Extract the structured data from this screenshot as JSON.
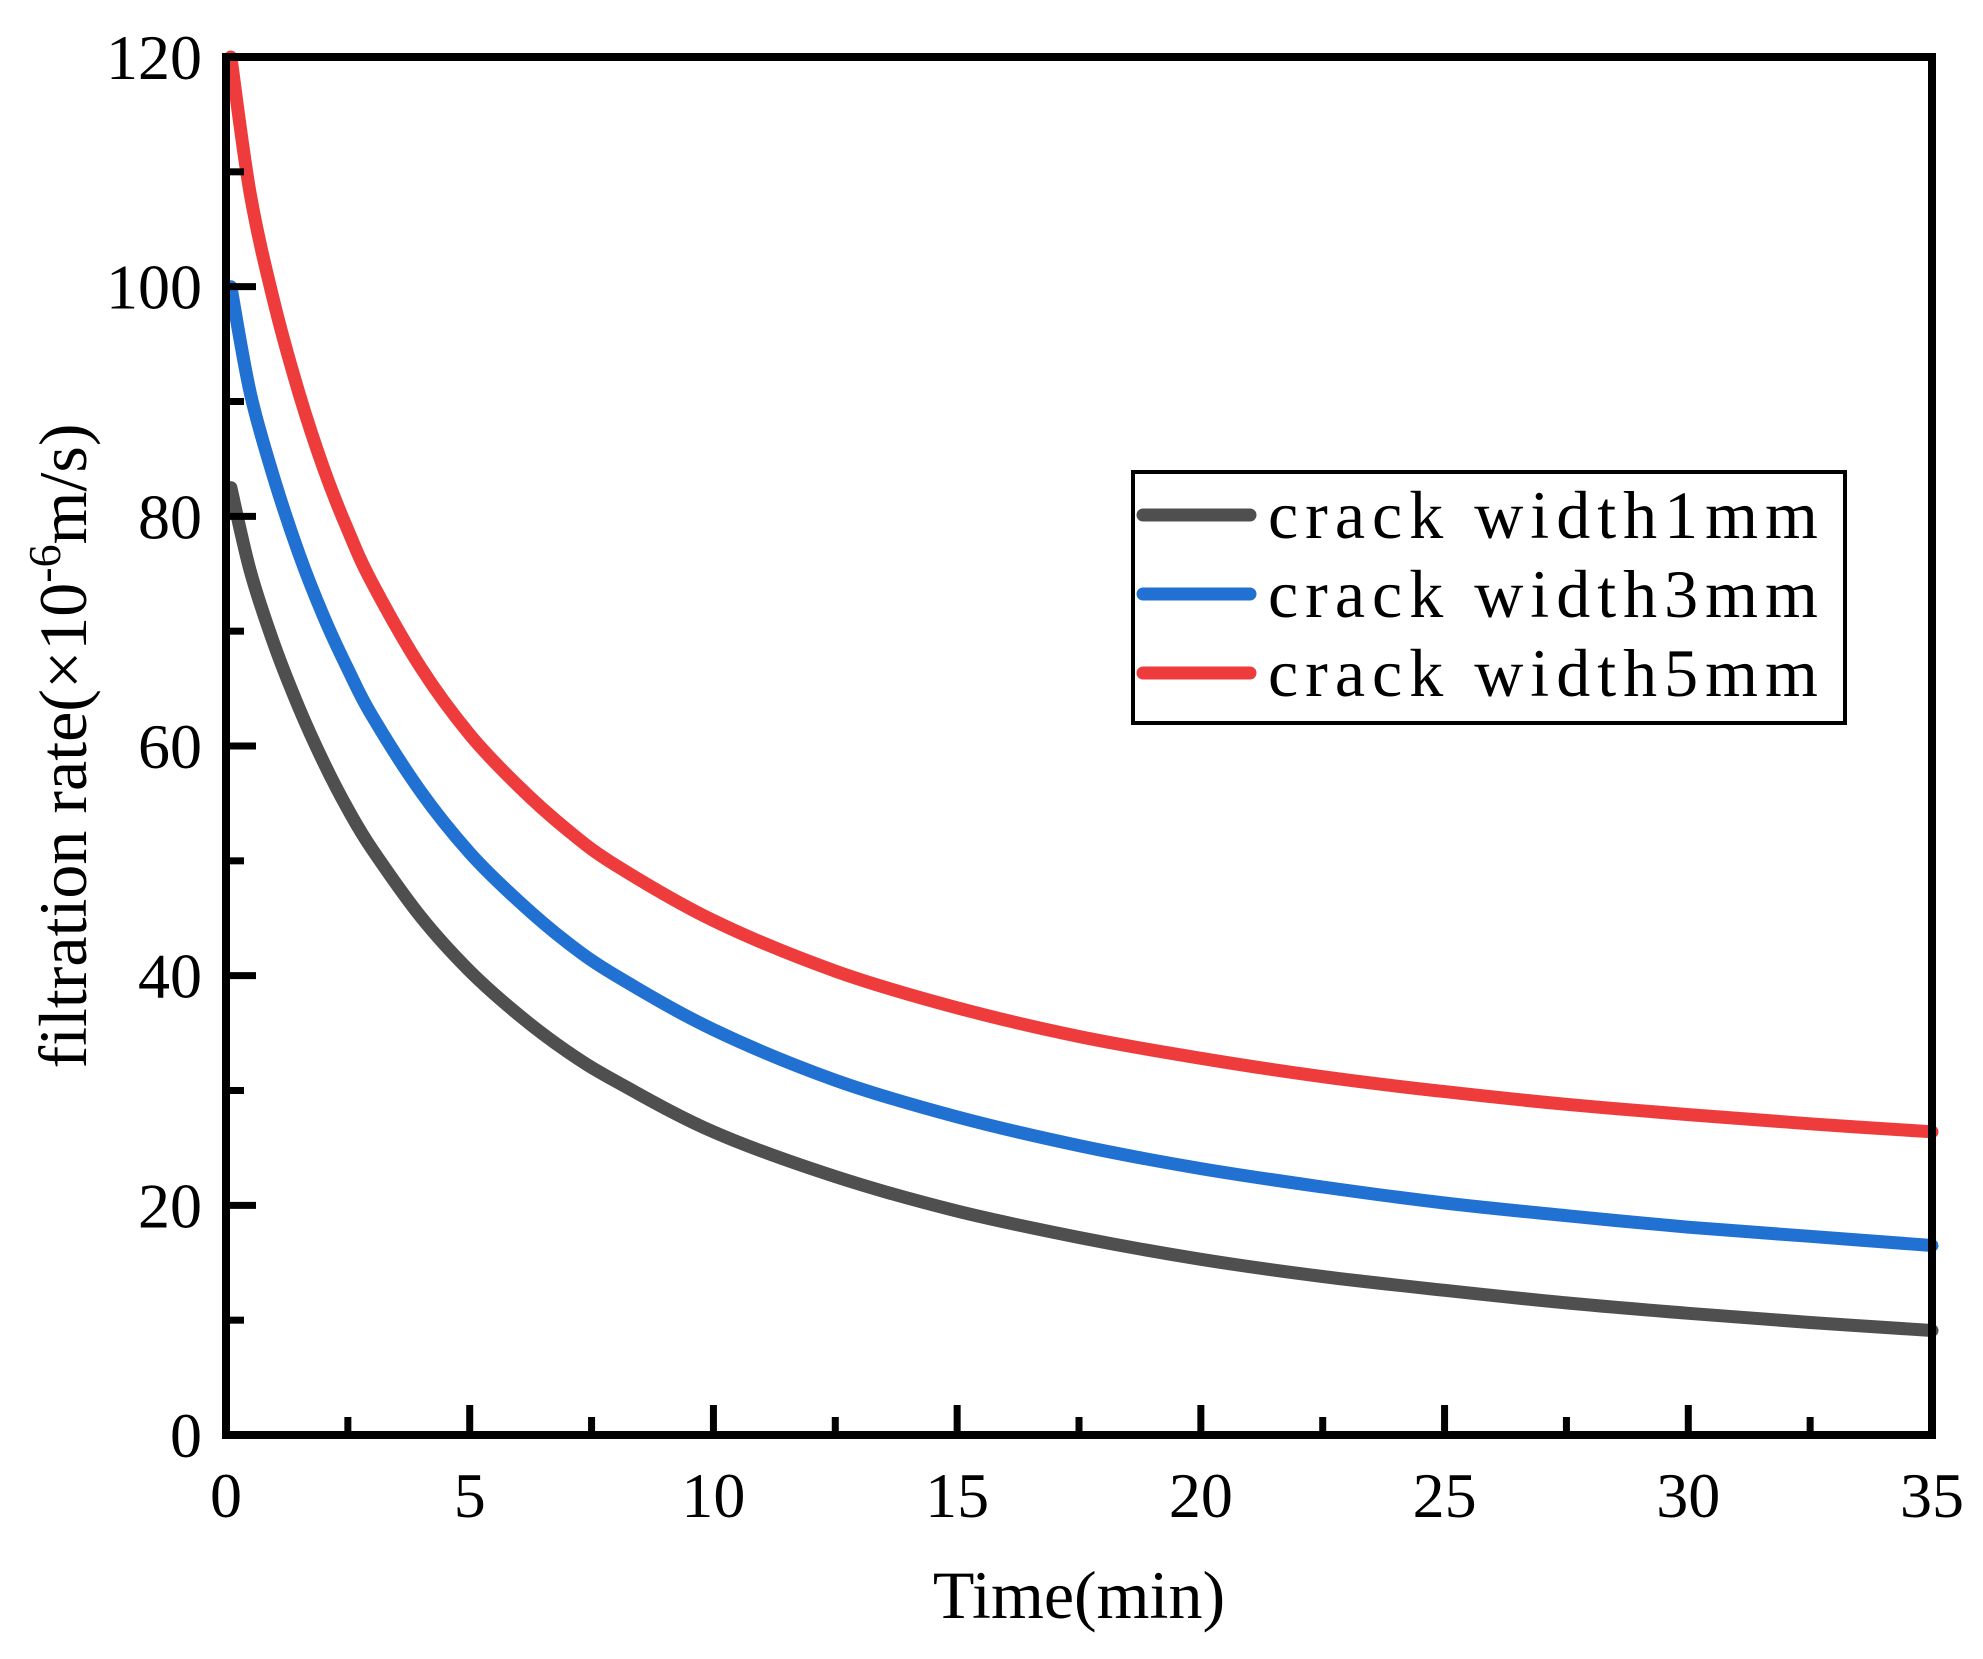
{
  "figure": {
    "background": "#ffffff",
    "frame_color": "#000000"
  },
  "chart_data": {
    "type": "line",
    "title": "",
    "xlabel": "Time(min)",
    "ylabel": "filtration rate(×10⁻⁶m/s)",
    "ylabel_parts": {
      "main": "filtration rate(×10",
      "sup": "-6",
      "rest": "m/s)"
    },
    "xlim": [
      0,
      35
    ],
    "ylim": [
      0,
      120
    ],
    "x_major_ticks": [
      0,
      5,
      10,
      15,
      20,
      25,
      30,
      35
    ],
    "x_minor_ticks": [
      2.5,
      7.5,
      12.5,
      17.5,
      22.5,
      27.5,
      32.5
    ],
    "y_major_ticks": [
      0,
      20,
      40,
      60,
      80,
      100,
      120
    ],
    "y_minor_ticks": [
      10,
      30,
      50,
      70,
      90,
      110
    ],
    "grid": false,
    "legend_position": "upper-right-inside",
    "series": [
      {
        "name": "crack width1mm",
        "color": "#4f4f4f",
        "x": [
          0.1,
          0.5,
          1,
          1.5,
          2,
          2.5,
          3,
          4,
          5,
          6,
          7,
          8,
          10,
          12.5,
          15,
          17.5,
          20,
          22.5,
          25,
          27.5,
          30,
          32.5,
          35
        ],
        "y": [
          82.5,
          75.2,
          68.7,
          63.3,
          58.6,
          54.5,
          51.0,
          45.1,
          40.4,
          36.6,
          33.4,
          30.8,
          26.4,
          22.5,
          19.5,
          17.2,
          15.3,
          13.8,
          12.6,
          11.5,
          10.6,
          9.8,
          9.1
        ]
      },
      {
        "name": "crack width3mm",
        "color": "#2171d3",
        "x": [
          0.1,
          0.5,
          1,
          1.5,
          2,
          2.5,
          3,
          4,
          5,
          6,
          7,
          8,
          10,
          12.5,
          15,
          17.5,
          20,
          22.5,
          25,
          27.5,
          30,
          32.5,
          35
        ],
        "y": [
          100.0,
          90.7,
          83.1,
          76.7,
          71.3,
          66.7,
          62.6,
          56.0,
          50.7,
          46.5,
          42.9,
          40.0,
          35.3,
          30.9,
          27.7,
          25.2,
          23.2,
          21.6,
          20.2,
          19.1,
          18.1,
          17.3,
          16.5
        ]
      },
      {
        "name": "crack width5mm",
        "color": "#ee3c3c",
        "x": [
          0.1,
          0.5,
          1,
          1.5,
          2,
          2.5,
          3,
          4,
          5,
          6,
          7,
          8,
          10,
          12.5,
          15,
          17.5,
          20,
          22.5,
          25,
          27.5,
          30,
          32.5,
          35
        ],
        "y": [
          120.0,
          108.0,
          98.4,
          90.7,
          84.2,
          78.8,
          74.2,
          66.8,
          61.0,
          56.5,
          52.7,
          49.6,
          44.8,
          40.4,
          37.2,
          34.7,
          32.8,
          31.2,
          29.9,
          28.8,
          27.9,
          27.1,
          26.4
        ]
      }
    ]
  }
}
